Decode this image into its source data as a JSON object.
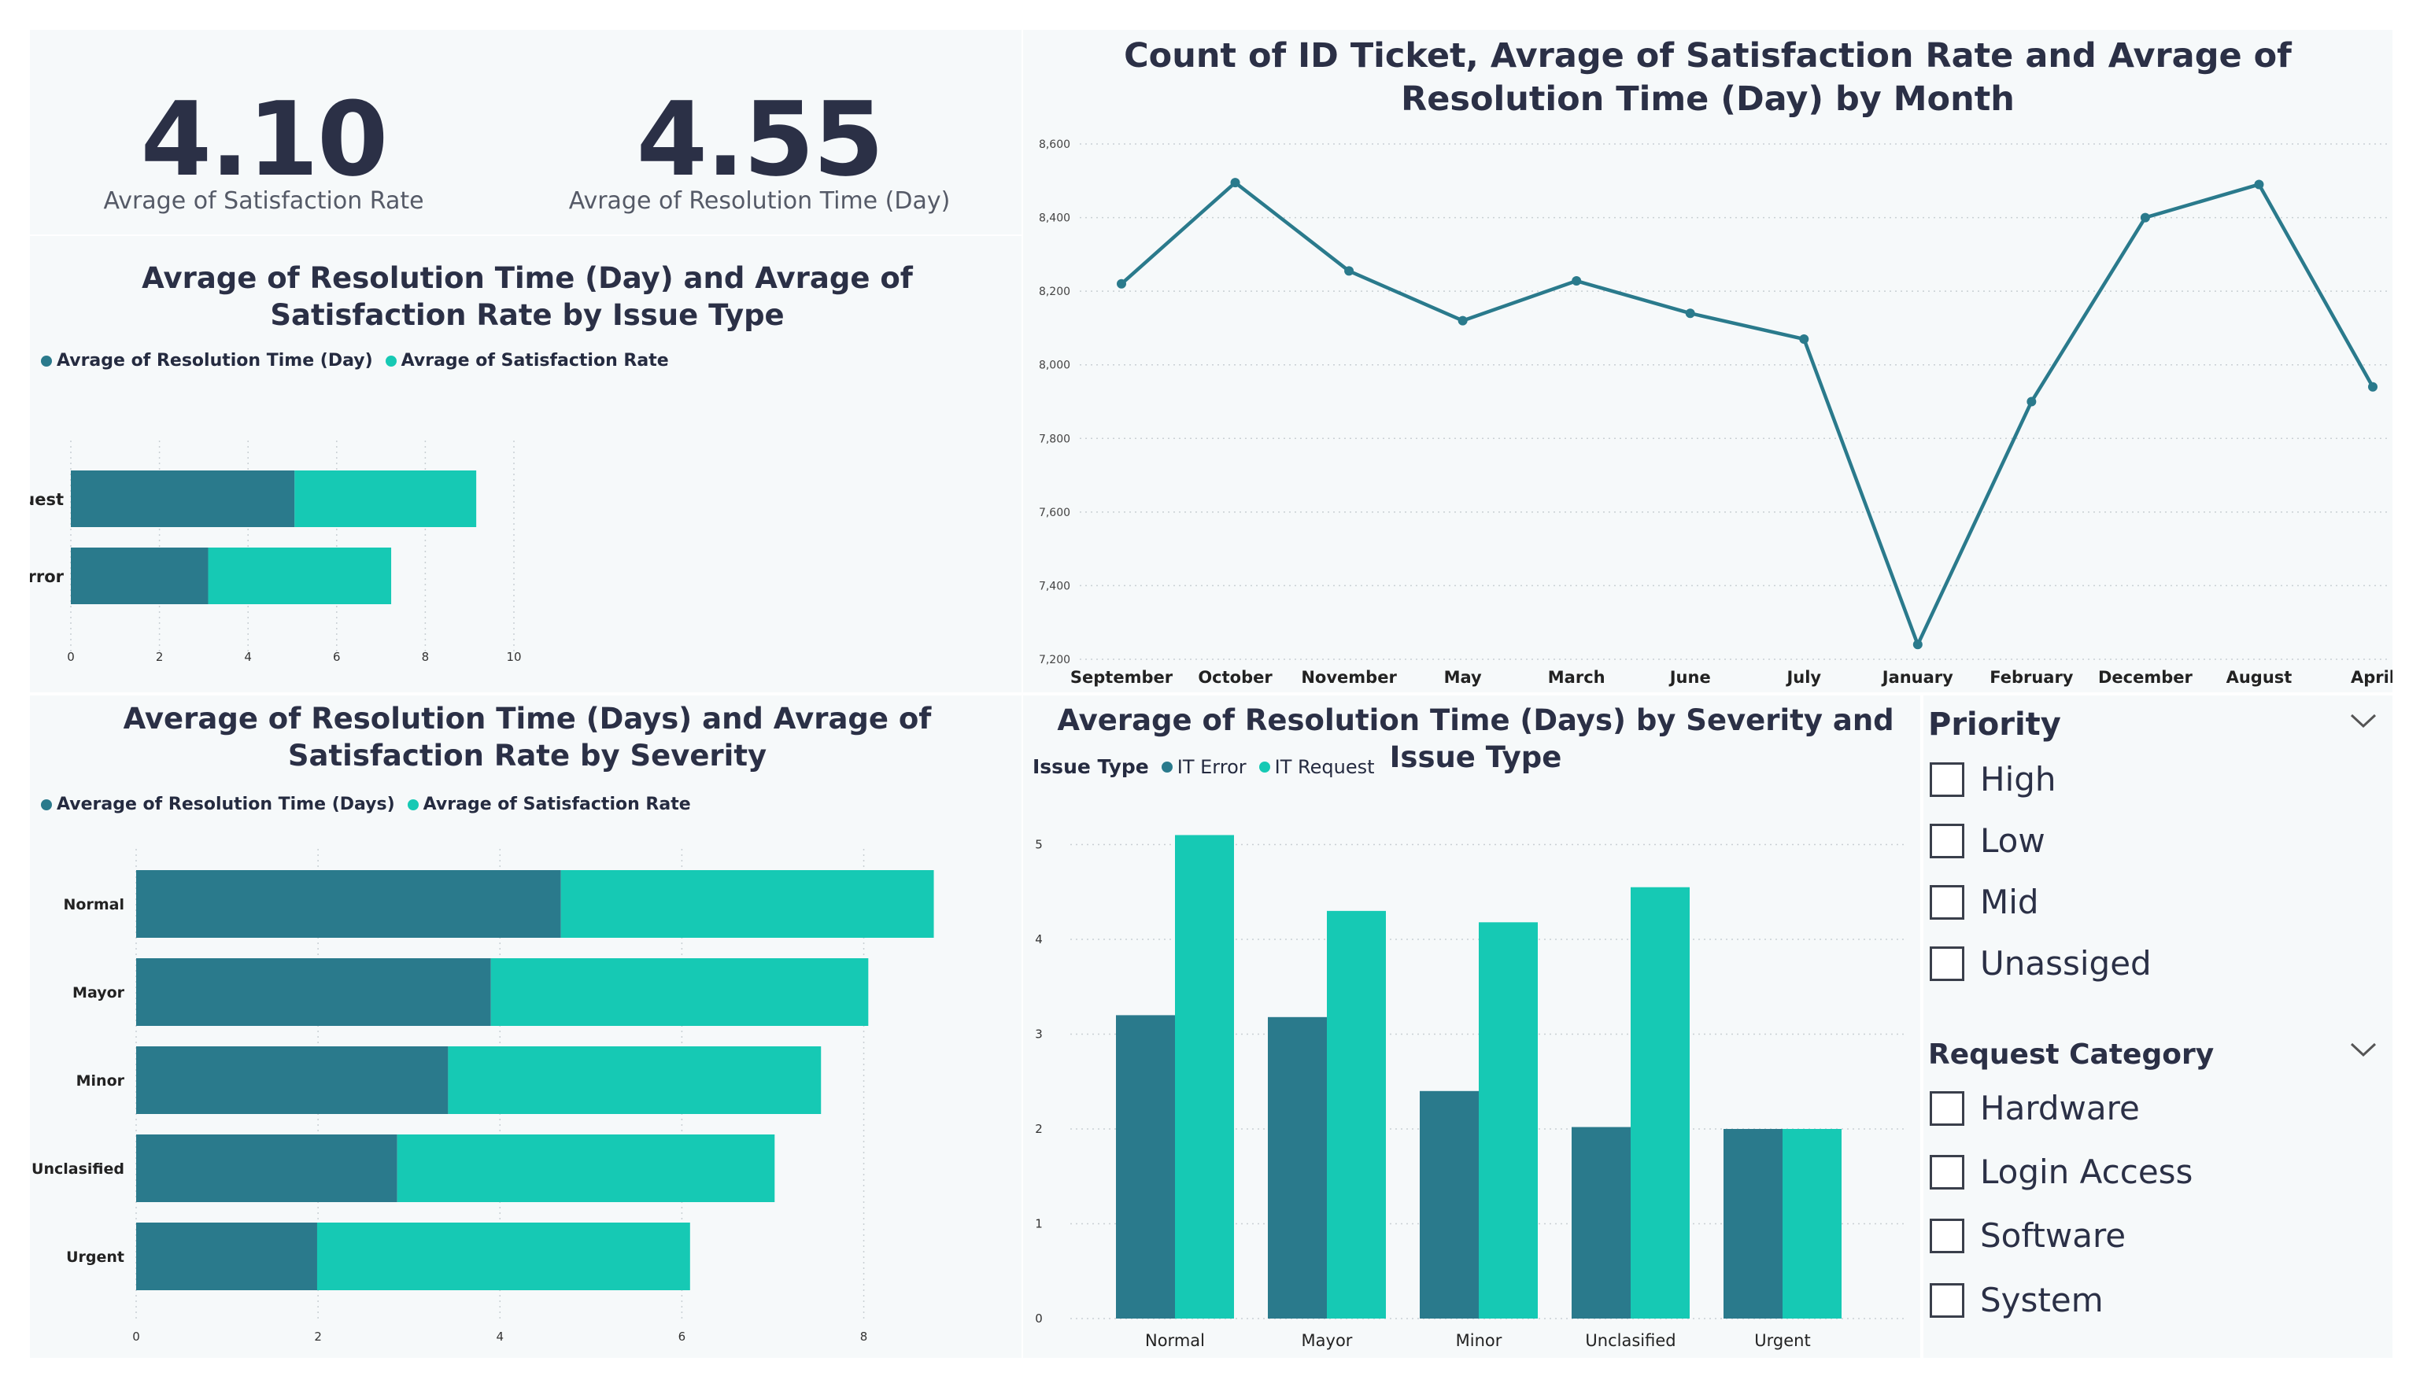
{
  "colors": {
    "dark": "#2a7a8c",
    "light": "#16c9b4",
    "panel": "#f6f9fa",
    "text": "#2b3046"
  },
  "kpis": [
    {
      "value": "4.10",
      "label": "Avrage of Satisfaction Rate"
    },
    {
      "value": "4.55",
      "label": "Avrage of Resolution Time (Day)"
    }
  ],
  "chart1": {
    "type": "bar",
    "title": "Avrage of Resolution Time (Day) and Avrage of Satisfaction Rate by Issue Type",
    "legend": [
      "Avrage of Resolution Time (Day)",
      "Avrage of Satisfaction Rate"
    ],
    "xticks": [
      "0",
      "2",
      "4",
      "6",
      "8",
      "10"
    ]
  },
  "chart2": {
    "type": "line",
    "title": "Count of ID Ticket, Avrage of Satisfaction Rate and Avrage of Resolution Time (Day) by Month",
    "yticks": [
      "8,600",
      "8,400",
      "8,200",
      "8,000",
      "7,800",
      "7,600",
      "7,400",
      "7,200"
    ]
  },
  "chart3": {
    "type": "bar",
    "title": "Average of Resolution Time (Days) and Avrage of Satisfaction Rate by Severity",
    "legend": [
      "Average of Resolution Time (Days)",
      "Avrage of Satisfaction Rate"
    ],
    "xticks": [
      "0",
      "2",
      "4",
      "6",
      "8"
    ]
  },
  "chart4": {
    "type": "bar",
    "title": "Average of Resolution Time (Days) by Severity and Issue Type",
    "legend_title": "Issue Type",
    "legend": [
      "IT Error",
      "IT Request"
    ],
    "yticks": [
      "0",
      "1",
      "2",
      "3",
      "4",
      "5"
    ]
  },
  "chart_data": [
    {
      "type": "bar",
      "orientation": "horizontal-stacked",
      "title": "Avrage of Resolution Time (Day) and Avrage of Satisfaction Rate by Issue Type",
      "categories": [
        "IT Request",
        "IT Error"
      ],
      "series": [
        {
          "name": "Avrage of Resolution Time (Day)",
          "values": [
            5.05,
            3.1
          ]
        },
        {
          "name": "Avrage of Satisfaction Rate",
          "values": [
            4.1,
            4.13
          ]
        }
      ],
      "xlim": [
        0,
        10
      ],
      "grid": true,
      "legend": "top-left"
    },
    {
      "type": "line",
      "title": "Count of ID Ticket, Avrage of Satisfaction Rate and Avrage of Resolution Time (Day) by Month",
      "categories": [
        "September",
        "October",
        "November",
        "May",
        "March",
        "June",
        "July",
        "January",
        "February",
        "December",
        "August",
        "April"
      ],
      "values": [
        8220,
        8495,
        8255,
        8120,
        8228,
        8140,
        8070,
        7240,
        7900,
        8400,
        8490,
        7940
      ],
      "ylim": [
        7200,
        8600
      ],
      "grid": true
    },
    {
      "type": "bar",
      "orientation": "horizontal-stacked",
      "title": "Average of Resolution Time (Days) and Avrage of Satisfaction Rate by Severity",
      "categories": [
        "Normal",
        "Mayor",
        "Minor",
        "Unclasified",
        "Urgent"
      ],
      "series": [
        {
          "name": "Average of Resolution Time (Days)",
          "values": [
            4.67,
            3.9,
            3.43,
            2.87,
            1.99
          ]
        },
        {
          "name": "Avrage of Satisfaction Rate",
          "values": [
            4.1,
            4.15,
            4.1,
            4.15,
            4.1
          ]
        }
      ],
      "xlim": [
        0,
        8.8
      ],
      "grid": true,
      "legend": "top-left"
    },
    {
      "type": "bar",
      "orientation": "vertical-clustered",
      "title": "Average of Resolution Time (Days) by Severity and Issue Type",
      "categories": [
        "Normal",
        "Mayor",
        "Minor",
        "Unclasified",
        "Urgent"
      ],
      "series": [
        {
          "name": "IT Error",
          "values": [
            3.2,
            3.18,
            2.4,
            2.02,
            2.0
          ]
        },
        {
          "name": "IT Request",
          "values": [
            5.1,
            4.3,
            4.18,
            4.55,
            2.0
          ]
        }
      ],
      "ylim": [
        0,
        5.5
      ],
      "grid": true,
      "legend": "top-left"
    }
  ],
  "slicers": [
    {
      "title": "Priority",
      "options": [
        "High",
        "Low",
        "Mid",
        "Unassiged"
      ]
    },
    {
      "title": "Request Category",
      "options": [
        "Hardware",
        "Login Access",
        "Software",
        "System"
      ]
    }
  ]
}
